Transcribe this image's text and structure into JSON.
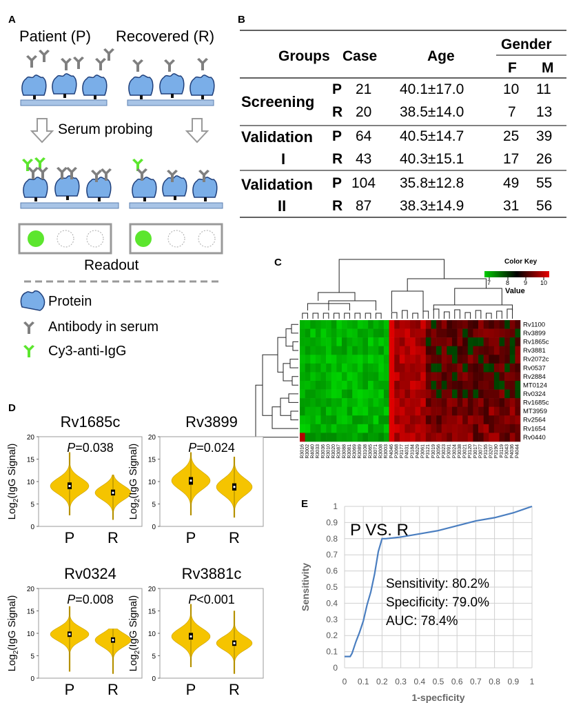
{
  "panel_labels": {
    "a": "A",
    "b": "B",
    "c": "C",
    "d": "D",
    "e": "E"
  },
  "panel_a": {
    "patient_label": "Patient (P)",
    "recovered_label": "Recovered (R)",
    "probing_label": "Serum probing",
    "readout_label": "Readout",
    "legend": [
      {
        "icon": "protein-icon",
        "label": "Protein"
      },
      {
        "icon": "antibody-icon",
        "label": "Antibody in serum"
      },
      {
        "icon": "cy3-anti-igg-icon",
        "label": "Cy3-anti-IgG"
      }
    ],
    "colors": {
      "protein": "#7aaee8",
      "antibody": "#7f7f7f",
      "cy3": "#5ce62e",
      "slide": "#a8c4e6"
    }
  },
  "panel_b": {
    "headers": {
      "groups": "Groups",
      "case": "Case",
      "age": "Age",
      "gender": "Gender",
      "f": "F",
      "m": "M"
    },
    "groups": [
      {
        "name_line1": "Screening",
        "name_line2": "",
        "rows": [
          {
            "grp": "P",
            "case": "21",
            "age": "40.1±17.0",
            "f": "10",
            "m": "11"
          },
          {
            "grp": "R",
            "case": "20",
            "age": "38.5±14.0",
            "f": "7",
            "m": "13"
          }
        ]
      },
      {
        "name_line1": "Validation",
        "name_line2": "I",
        "rows": [
          {
            "grp": "P",
            "case": "64",
            "age": "40.5±14.7",
            "f": "25",
            "m": "39"
          },
          {
            "grp": "R",
            "case": "43",
            "age": "40.3±15.1",
            "f": "17",
            "m": "26"
          }
        ]
      },
      {
        "name_line1": "Validation",
        "name_line2": "II",
        "rows": [
          {
            "grp": "P",
            "case": "104",
            "age": "35.8±12.8",
            "f": "49",
            "m": "55"
          },
          {
            "grp": "R",
            "case": "87",
            "age": "38.3±14.9",
            "f": "31",
            "m": "56"
          }
        ]
      }
    ]
  },
  "panel_c": {
    "color_key": {
      "title": "Color Key",
      "axis_label": "Value",
      "ticks": [
        "7",
        "8",
        "9",
        "10"
      ]
    },
    "row_labels": [
      "Rv1100",
      "Rv3899",
      "Rv1865c",
      "Rv3881",
      "Rv2072c",
      "Rv0537",
      "Rv2884",
      "MT0124",
      "Rv0324",
      "Rv1685c",
      "MT3959",
      "Rv2564",
      "Rv1654",
      "Rv0440"
    ],
    "col_labels": [
      "R3016",
      "R3002",
      "R4040",
      "R3033",
      "R3036",
      "R3010",
      "R3020",
      "R3087",
      "R3088",
      "R3081",
      "R3069",
      "R3089",
      "R3108",
      "R3065",
      "R3071",
      "R3008",
      "R3003",
      "P4046",
      "P3068",
      "P3177",
      "P4031",
      "P3184",
      "P4029",
      "P3061",
      "P3121",
      "P3019",
      "P3056",
      "P3023",
      "P3091",
      "P3024",
      "P3038",
      "P3021",
      "P3120",
      "P3017",
      "P3077",
      "P3155",
      "P3207",
      "P3190",
      "P3119",
      "P3043",
      "P4036",
      "P4044"
    ],
    "n_recovered": 17,
    "colors": {
      "low": "#00cc00",
      "mid": "#000000",
      "high": "#e60000"
    }
  },
  "panel_d": {
    "ylabel": "Log2(IgG Signal)",
    "yticks": [
      "0",
      "5",
      "10",
      "15",
      "20"
    ],
    "ylim": [
      0,
      20
    ],
    "group_labels": [
      "P",
      "R"
    ],
    "violin_color": "#f5c400",
    "plots": [
      {
        "title": "Rv1685c",
        "p_text": "=0.038",
        "P": {
          "median": 9.0,
          "q1": 8.3,
          "q3": 9.8,
          "min": 2.5,
          "max": 16.5
        },
        "R": {
          "median": 7.5,
          "q1": 6.9,
          "q3": 8.2,
          "min": 1.5,
          "max": 11.5
        }
      },
      {
        "title": "Rv3899",
        "p_text": "=0.024",
        "P": {
          "median": 10.2,
          "q1": 9.3,
          "q3": 11.0,
          "min": 2.5,
          "max": 16.5
        },
        "R": {
          "median": 8.8,
          "q1": 8.0,
          "q3": 9.6,
          "min": 2.0,
          "max": 15.5
        }
      },
      {
        "title": "Rv0324",
        "p_text": "=0.008",
        "P": {
          "median": 9.8,
          "q1": 9.2,
          "q3": 10.4,
          "min": 1.5,
          "max": 16.0
        },
        "R": {
          "median": 8.5,
          "q1": 7.9,
          "q3": 9.1,
          "min": 1.0,
          "max": 11.0
        }
      },
      {
        "title": "Rv3881c",
        "p_text": "<0.001",
        "P": {
          "median": 9.3,
          "q1": 8.6,
          "q3": 10.1,
          "min": 2.5,
          "max": 16.5
        },
        "R": {
          "median": 7.8,
          "q1": 7.2,
          "q3": 8.4,
          "min": 1.0,
          "max": 15.0
        }
      }
    ]
  },
  "panel_e": {
    "title": "P VS. R",
    "xlabel": "1-specficity",
    "ylabel": "Sensitivity",
    "xticks": [
      "0",
      "0.1",
      "0.2",
      "0.3",
      "0.4",
      "0.5",
      "0.6",
      "0.7",
      "0.8",
      "0.9",
      "1"
    ],
    "yticks": [
      "0",
      "0.1",
      "0.2",
      "0.3",
      "0.4",
      "0.5",
      "0.6",
      "0.7",
      "0.8",
      "0.9",
      "1"
    ],
    "stats": [
      "Sensitivity: 80.2%",
      "Specificity: 79.0%",
      "AUC: 78.4%"
    ],
    "line_color": "#4a7ec0"
  },
  "chart_data": {
    "type": "line",
    "title": "P VS. R",
    "xlabel": "1-specficity",
    "ylabel": "Sensitivity",
    "xlim": [
      0,
      1
    ],
    "ylim": [
      0,
      1
    ],
    "grid": true,
    "x": [
      0,
      0.03,
      0.04,
      0.06,
      0.08,
      0.1,
      0.12,
      0.14,
      0.16,
      0.18,
      0.2,
      0.22,
      0.3,
      0.4,
      0.5,
      0.6,
      0.7,
      0.8,
      0.9,
      0.95,
      1.0
    ],
    "y": [
      0.07,
      0.07,
      0.09,
      0.16,
      0.22,
      0.29,
      0.39,
      0.47,
      0.58,
      0.72,
      0.8,
      0.8,
      0.81,
      0.83,
      0.85,
      0.88,
      0.91,
      0.93,
      0.96,
      0.98,
      1.0
    ]
  }
}
